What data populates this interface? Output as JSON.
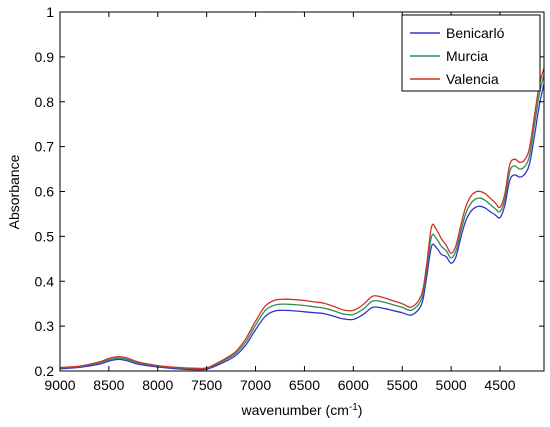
{
  "chart_data": {
    "type": "line",
    "title": "",
    "xlabel": "wavenumber (cm",
    "xlabel_sup": "-1",
    "xlabel_close": ")",
    "ylabel": "Absorbance",
    "xlim": [
      9000,
      4050
    ],
    "x_reversed": true,
    "ylim": [
      0.2,
      1
    ],
    "xticks": [
      9000,
      8500,
      8000,
      7500,
      7000,
      6500,
      6000,
      5500,
      5000,
      4500
    ],
    "xtick_labels": [
      "9000",
      "8500",
      "8000",
      "7500",
      "7000",
      "6500",
      "6000",
      "5500",
      "5000",
      "4500"
    ],
    "yticks": [
      0.2,
      0.3,
      0.4,
      0.5,
      0.6,
      0.7,
      0.8,
      0.9,
      1.0
    ],
    "ytick_labels": [
      "0.2",
      "0.3",
      "0.4",
      "0.5",
      "0.6",
      "0.7",
      "0.8",
      "0.9",
      "1"
    ],
    "grid": false,
    "legend_position": "top-right",
    "x": [
      9000,
      8800,
      8600,
      8500,
      8400,
      8300,
      8200,
      8000,
      7800,
      7600,
      7500,
      7400,
      7300,
      7200,
      7100,
      7000,
      6900,
      6800,
      6700,
      6600,
      6500,
      6400,
      6300,
      6200,
      6100,
      6000,
      5900,
      5800,
      5700,
      5600,
      5500,
      5400,
      5300,
      5250,
      5200,
      5150,
      5100,
      5050,
      5000,
      4950,
      4900,
      4850,
      4800,
      4750,
      4700,
      4650,
      4600,
      4550,
      4500,
      4450,
      4400,
      4350,
      4300,
      4250,
      4200,
      4150,
      4100,
      4050
    ],
    "series": [
      {
        "name": "Benicarló",
        "color": "#3333cc",
        "values": [
          0.205,
          0.208,
          0.215,
          0.222,
          0.226,
          0.222,
          0.215,
          0.209,
          0.205,
          0.203,
          0.204,
          0.212,
          0.222,
          0.235,
          0.258,
          0.292,
          0.322,
          0.334,
          0.335,
          0.334,
          0.332,
          0.33,
          0.328,
          0.322,
          0.316,
          0.315,
          0.326,
          0.342,
          0.34,
          0.335,
          0.33,
          0.325,
          0.35,
          0.41,
          0.478,
          0.475,
          0.46,
          0.455,
          0.44,
          0.455,
          0.498,
          0.535,
          0.555,
          0.565,
          0.567,
          0.563,
          0.555,
          0.548,
          0.542,
          0.57,
          0.625,
          0.637,
          0.632,
          0.638,
          0.66,
          0.72,
          0.79,
          0.84
        ]
      },
      {
        "name": "Murcia",
        "color": "#2e8b57",
        "values": [
          0.207,
          0.21,
          0.218,
          0.225,
          0.229,
          0.225,
          0.218,
          0.211,
          0.207,
          0.205,
          0.206,
          0.215,
          0.226,
          0.24,
          0.265,
          0.302,
          0.335,
          0.347,
          0.349,
          0.348,
          0.346,
          0.343,
          0.34,
          0.334,
          0.327,
          0.326,
          0.338,
          0.356,
          0.354,
          0.348,
          0.342,
          0.336,
          0.362,
          0.425,
          0.5,
          0.495,
          0.478,
          0.468,
          0.452,
          0.468,
          0.512,
          0.551,
          0.573,
          0.583,
          0.585,
          0.58,
          0.571,
          0.562,
          0.555,
          0.583,
          0.645,
          0.657,
          0.65,
          0.655,
          0.678,
          0.745,
          0.815,
          0.86
        ]
      },
      {
        "name": "Valencia",
        "color": "#cc3322",
        "values": [
          0.208,
          0.211,
          0.22,
          0.228,
          0.232,
          0.228,
          0.22,
          0.212,
          0.208,
          0.206,
          0.207,
          0.217,
          0.229,
          0.244,
          0.272,
          0.311,
          0.345,
          0.358,
          0.36,
          0.359,
          0.357,
          0.354,
          0.351,
          0.344,
          0.336,
          0.335,
          0.348,
          0.367,
          0.364,
          0.357,
          0.35,
          0.343,
          0.372,
          0.438,
          0.522,
          0.515,
          0.495,
          0.48,
          0.462,
          0.48,
          0.525,
          0.566,
          0.589,
          0.599,
          0.6,
          0.595,
          0.585,
          0.575,
          0.565,
          0.595,
          0.66,
          0.672,
          0.665,
          0.67,
          0.695,
          0.765,
          0.835,
          0.875
        ]
      }
    ]
  }
}
